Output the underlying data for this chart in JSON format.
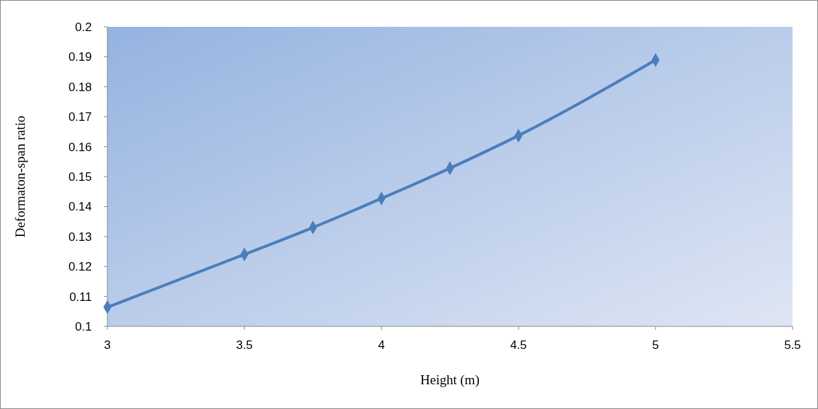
{
  "chart_data": {
    "type": "line",
    "xlabel": "Height (m)",
    "ylabel": "Deformaton-span ratio",
    "x": [
      3,
      3.5,
      3.75,
      4,
      4.25,
      4.5,
      5
    ],
    "series": [
      {
        "color": "#4a7ebb",
        "values": [
          0.1064,
          0.124,
          0.133,
          0.1427,
          0.1528,
          0.1637,
          0.1889
        ]
      }
    ],
    "xlim": [
      3,
      5.5
    ],
    "xticks": [
      3,
      3.5,
      4,
      4.5,
      5,
      5.5
    ],
    "ylim": [
      0.1,
      0.2
    ],
    "yticks": [
      0.1,
      0.11,
      0.12,
      0.13,
      0.14,
      0.15,
      0.16,
      0.17,
      0.18,
      0.19,
      0.2
    ],
    "marker": "diamond"
  }
}
